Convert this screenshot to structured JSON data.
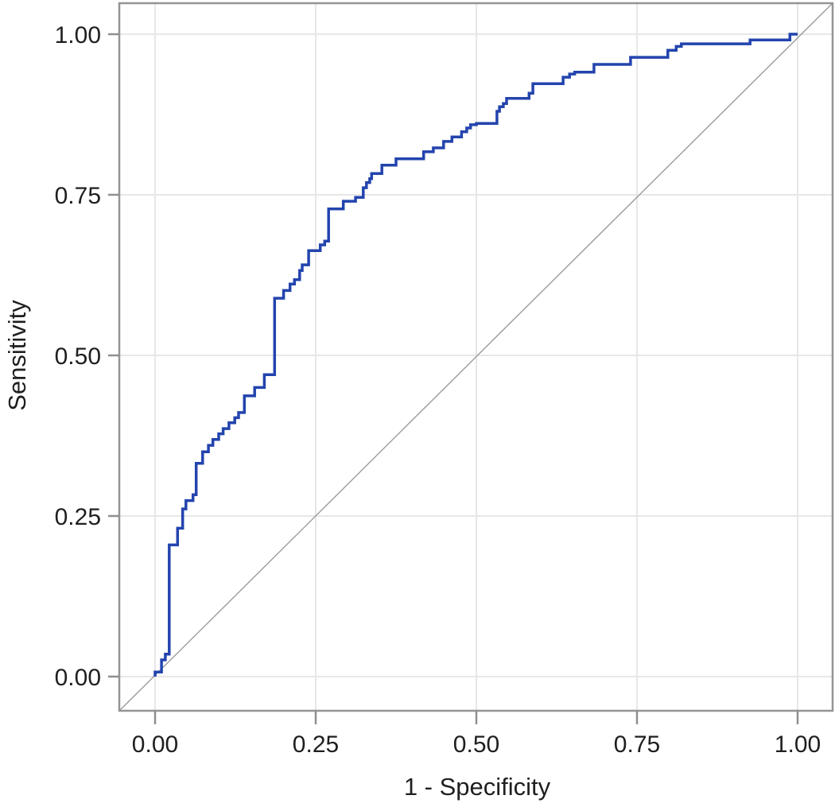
{
  "chart_data": {
    "type": "line",
    "subtype": "roc-step-curve",
    "title": "",
    "xlabel": "1 - Specificity",
    "ylabel": "Sensitivity",
    "xlim": [
      0,
      1
    ],
    "ylim": [
      0,
      1
    ],
    "grid": true,
    "legend_position": "none",
    "x_tick_values": [
      0.0,
      0.25,
      0.5,
      0.75,
      1.0
    ],
    "y_tick_values": [
      0.0,
      0.25,
      0.5,
      0.75,
      1.0
    ],
    "x_tick_labels": [
      "0.00",
      "0.25",
      "0.50",
      "0.75",
      "1.00"
    ],
    "y_tick_labels": [
      "0.00",
      "0.25",
      "0.50",
      "0.75",
      "1.00"
    ],
    "colors": {
      "roc_curve": "#2344ae",
      "reference_line": "#9b9b9b",
      "frame": "#949494",
      "gridline": "#e7e7e7",
      "tick": "#8f8f8f",
      "text": "#1f1f1f",
      "background": "#ffffff"
    },
    "series": [
      {
        "name": "roc-curve",
        "draw": "polyline",
        "points": [
          [
            0.0,
            0.0
          ],
          [
            0.0,
            0.007
          ],
          [
            0.01,
            0.007
          ],
          [
            0.01,
            0.026
          ],
          [
            0.016,
            0.026
          ],
          [
            0.016,
            0.035
          ],
          [
            0.022,
            0.035
          ],
          [
            0.022,
            0.205
          ],
          [
            0.035,
            0.205
          ],
          [
            0.035,
            0.231
          ],
          [
            0.043,
            0.231
          ],
          [
            0.043,
            0.261
          ],
          [
            0.048,
            0.261
          ],
          [
            0.048,
            0.274
          ],
          [
            0.059,
            0.274
          ],
          [
            0.059,
            0.283
          ],
          [
            0.064,
            0.283
          ],
          [
            0.064,
            0.332
          ],
          [
            0.074,
            0.332
          ],
          [
            0.074,
            0.35
          ],
          [
            0.083,
            0.35
          ],
          [
            0.083,
            0.36
          ],
          [
            0.09,
            0.36
          ],
          [
            0.09,
            0.369
          ],
          [
            0.099,
            0.369
          ],
          [
            0.099,
            0.378
          ],
          [
            0.106,
            0.378
          ],
          [
            0.106,
            0.386
          ],
          [
            0.115,
            0.386
          ],
          [
            0.115,
            0.395
          ],
          [
            0.124,
            0.395
          ],
          [
            0.124,
            0.403
          ],
          [
            0.13,
            0.403
          ],
          [
            0.13,
            0.411
          ],
          [
            0.139,
            0.411
          ],
          [
            0.139,
            0.437
          ],
          [
            0.155,
            0.437
          ],
          [
            0.155,
            0.45
          ],
          [
            0.17,
            0.45
          ],
          [
            0.17,
            0.47
          ],
          [
            0.186,
            0.47
          ],
          [
            0.186,
            0.589
          ],
          [
            0.2,
            0.589
          ],
          [
            0.2,
            0.601
          ],
          [
            0.21,
            0.601
          ],
          [
            0.21,
            0.611
          ],
          [
            0.217,
            0.611
          ],
          [
            0.217,
            0.618
          ],
          [
            0.225,
            0.618
          ],
          [
            0.225,
            0.632
          ],
          [
            0.229,
            0.632
          ],
          [
            0.229,
            0.641
          ],
          [
            0.239,
            0.641
          ],
          [
            0.239,
            0.663
          ],
          [
            0.257,
            0.663
          ],
          [
            0.257,
            0.672
          ],
          [
            0.264,
            0.672
          ],
          [
            0.264,
            0.678
          ],
          [
            0.27,
            0.678
          ],
          [
            0.27,
            0.728
          ],
          [
            0.293,
            0.728
          ],
          [
            0.293,
            0.74
          ],
          [
            0.312,
            0.74
          ],
          [
            0.312,
            0.746
          ],
          [
            0.324,
            0.746
          ],
          [
            0.324,
            0.761
          ],
          [
            0.329,
            0.761
          ],
          [
            0.329,
            0.769
          ],
          [
            0.334,
            0.769
          ],
          [
            0.334,
            0.775
          ],
          [
            0.337,
            0.775
          ],
          [
            0.337,
            0.783
          ],
          [
            0.353,
            0.783
          ],
          [
            0.353,
            0.796
          ],
          [
            0.375,
            0.796
          ],
          [
            0.375,
            0.806
          ],
          [
            0.418,
            0.806
          ],
          [
            0.418,
            0.817
          ],
          [
            0.433,
            0.817
          ],
          [
            0.433,
            0.823
          ],
          [
            0.449,
            0.823
          ],
          [
            0.449,
            0.833
          ],
          [
            0.462,
            0.833
          ],
          [
            0.462,
            0.84
          ],
          [
            0.477,
            0.84
          ],
          [
            0.477,
            0.848
          ],
          [
            0.485,
            0.848
          ],
          [
            0.485,
            0.854
          ],
          [
            0.491,
            0.854
          ],
          [
            0.491,
            0.859
          ],
          [
            0.5,
            0.859
          ],
          [
            0.5,
            0.861
          ],
          [
            0.532,
            0.861
          ],
          [
            0.532,
            0.88
          ],
          [
            0.536,
            0.88
          ],
          [
            0.536,
            0.887
          ],
          [
            0.542,
            0.887
          ],
          [
            0.542,
            0.892
          ],
          [
            0.547,
            0.892
          ],
          [
            0.547,
            0.9
          ],
          [
            0.582,
            0.9
          ],
          [
            0.582,
            0.908
          ],
          [
            0.588,
            0.908
          ],
          [
            0.588,
            0.923
          ],
          [
            0.635,
            0.923
          ],
          [
            0.635,
            0.933
          ],
          [
            0.645,
            0.933
          ],
          [
            0.645,
            0.938
          ],
          [
            0.653,
            0.938
          ],
          [
            0.653,
            0.941
          ],
          [
            0.683,
            0.941
          ],
          [
            0.683,
            0.953
          ],
          [
            0.74,
            0.953
          ],
          [
            0.74,
            0.964
          ],
          [
            0.798,
            0.964
          ],
          [
            0.798,
            0.975
          ],
          [
            0.811,
            0.975
          ],
          [
            0.811,
            0.981
          ],
          [
            0.819,
            0.981
          ],
          [
            0.819,
            0.985
          ],
          [
            0.926,
            0.985
          ],
          [
            0.926,
            0.991
          ],
          [
            0.988,
            0.991
          ],
          [
            0.988,
            1.0
          ],
          [
            1.0,
            1.0
          ]
        ]
      },
      {
        "name": "reference-diagonal",
        "draw": "frame-diagonal",
        "description": "gray chance reference line from bottom-left frame corner to top-right frame corner (y = x)"
      }
    ]
  }
}
